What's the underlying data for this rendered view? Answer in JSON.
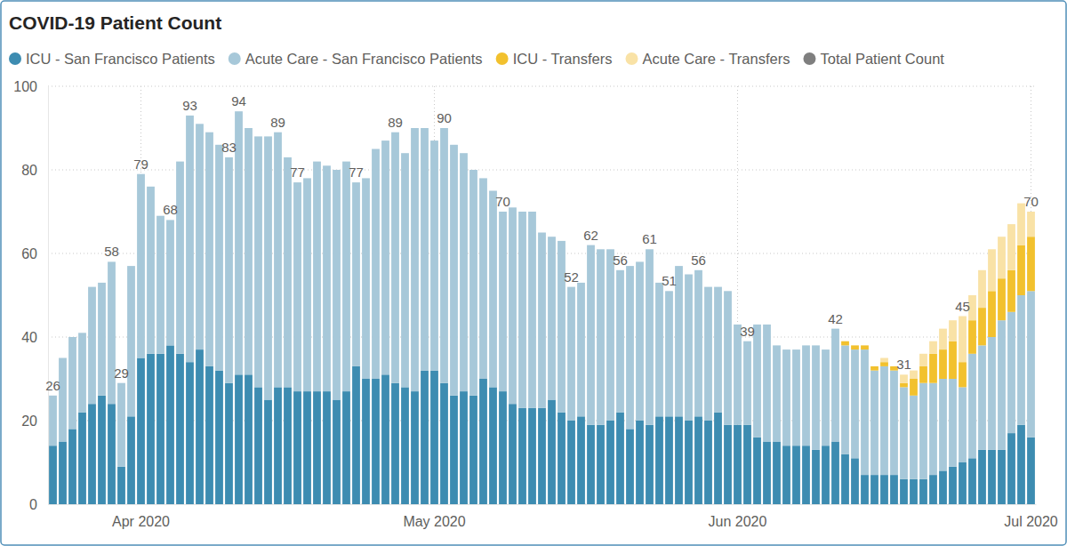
{
  "chart_data": {
    "type": "bar",
    "title": "COVID-19 Patient Count",
    "stacked": true,
    "grid": true,
    "legend": "top",
    "ylim": [
      0,
      100
    ],
    "yticks": [
      0,
      20,
      40,
      60,
      80,
      100
    ],
    "categories": [
      null,
      null,
      null,
      null,
      null,
      null,
      null,
      null,
      null,
      "Apr 2020",
      null,
      null,
      null,
      null,
      null,
      null,
      null,
      null,
      null,
      null,
      null,
      null,
      null,
      null,
      null,
      null,
      null,
      null,
      null,
      null,
      null,
      null,
      null,
      null,
      null,
      null,
      null,
      null,
      null,
      "May 2020",
      null,
      null,
      null,
      null,
      null,
      null,
      null,
      null,
      null,
      null,
      null,
      null,
      null,
      null,
      null,
      null,
      null,
      null,
      null,
      null,
      null,
      null,
      null,
      null,
      null,
      null,
      null,
      null,
      null,
      null,
      "Jun 2020",
      null,
      null,
      null,
      null,
      null,
      null,
      null,
      null,
      null,
      null,
      null,
      null,
      null,
      null,
      null,
      null,
      null,
      null,
      null,
      null,
      null,
      null,
      null,
      null,
      null,
      null,
      null,
      null,
      null,
      "Jul 2020"
    ],
    "series": [
      {
        "name": "ICU - San Francisco Patients",
        "color": "#3d8cb1",
        "type": "bar",
        "values": [
          14,
          15,
          18,
          22,
          24,
          26,
          24,
          9,
          21,
          35,
          36,
          36,
          38,
          36,
          34,
          37,
          33,
          32,
          29,
          31,
          31,
          28,
          25,
          28,
          28,
          27,
          27,
          27,
          27,
          25,
          27,
          33,
          30,
          30,
          31,
          29,
          28,
          27,
          32,
          32,
          29,
          26,
          27,
          26,
          30,
          28,
          27,
          24,
          23,
          23,
          23,
          25,
          22,
          20,
          21,
          19,
          19,
          20,
          22,
          18,
          20,
          19,
          21,
          21,
          21,
          20,
          21,
          20,
          22,
          19,
          19,
          19,
          16,
          15,
          15,
          14,
          14,
          14,
          13,
          14,
          15,
          12,
          11,
          7,
          7,
          7,
          7,
          6,
          6,
          6,
          7,
          8,
          9,
          10,
          11,
          13,
          13,
          13,
          17,
          19,
          16
        ]
      },
      {
        "name": "Acute Care - San Francisco Patients",
        "color": "#a7c8d9",
        "type": "bar",
        "values": [
          12,
          20,
          22,
          19,
          28,
          27,
          34,
          20,
          36,
          44,
          40,
          33,
          30,
          46,
          59,
          54,
          56,
          54,
          54,
          63,
          59,
          60,
          63,
          61,
          55,
          50,
          51,
          55,
          54,
          55,
          55,
          44,
          48,
          55,
          56,
          60,
          56,
          63,
          58,
          55,
          61,
          60,
          57,
          54,
          48,
          47,
          43,
          47,
          47,
          47,
          42,
          39,
          41,
          32,
          32,
          43,
          42,
          41,
          34,
          39,
          38,
          42,
          32,
          30,
          36,
          35,
          35,
          32,
          30,
          32,
          24,
          20,
          27,
          28,
          23,
          23,
          23,
          24,
          25,
          23,
          27,
          26,
          26,
          30,
          25,
          26,
          25,
          22,
          20,
          23,
          22,
          22,
          21,
          18,
          25,
          25,
          27,
          31,
          29,
          31,
          35
        ]
      },
      {
        "name": "ICU - Transfers",
        "color": "#f2c12e",
        "type": "bar",
        "values": [
          0,
          0,
          0,
          0,
          0,
          0,
          0,
          0,
          0,
          0,
          0,
          0,
          0,
          0,
          0,
          0,
          0,
          0,
          0,
          0,
          0,
          0,
          0,
          0,
          0,
          0,
          0,
          0,
          0,
          0,
          0,
          0,
          0,
          0,
          0,
          0,
          0,
          0,
          0,
          0,
          0,
          0,
          0,
          0,
          0,
          0,
          0,
          0,
          0,
          0,
          0,
          0,
          0,
          0,
          0,
          0,
          0,
          0,
          0,
          0,
          0,
          0,
          0,
          0,
          0,
          0,
          0,
          0,
          0,
          0,
          0,
          0,
          0,
          0,
          0,
          0,
          0,
          0,
          0,
          0,
          0,
          1,
          1,
          1,
          1,
          1,
          1,
          1,
          4,
          4,
          7,
          7,
          9,
          6,
          8,
          9,
          11,
          10,
          10,
          12,
          13
        ]
      },
      {
        "name": "Acute Care - Transfers",
        "color": "#f9e2a6",
        "type": "bar",
        "values": [
          0,
          0,
          0,
          0,
          0,
          0,
          0,
          0,
          0,
          0,
          0,
          0,
          0,
          0,
          0,
          0,
          0,
          0,
          0,
          0,
          0,
          0,
          0,
          0,
          0,
          0,
          0,
          0,
          0,
          0,
          0,
          0,
          0,
          0,
          0,
          0,
          0,
          0,
          0,
          0,
          0,
          0,
          0,
          0,
          0,
          0,
          0,
          0,
          0,
          0,
          0,
          0,
          0,
          0,
          0,
          0,
          0,
          0,
          0,
          0,
          0,
          0,
          0,
          0,
          0,
          0,
          0,
          0,
          0,
          0,
          0,
          0,
          0,
          0,
          0,
          0,
          0,
          0,
          0,
          0,
          0,
          0,
          0,
          0,
          0,
          1,
          0,
          2,
          2,
          3,
          3,
          5,
          5,
          11,
          6,
          9,
          10,
          10,
          11,
          10,
          6
        ]
      },
      {
        "name": "Total Patient Count",
        "color": "#7f7f7f",
        "type": "label",
        "data_labels": true,
        "values": [
          26,
          null,
          null,
          null,
          null,
          null,
          58,
          29,
          null,
          79,
          null,
          null,
          68,
          null,
          93,
          null,
          null,
          null,
          83,
          94,
          null,
          null,
          null,
          89,
          null,
          77,
          null,
          null,
          null,
          null,
          null,
          77,
          null,
          null,
          null,
          89,
          null,
          null,
          null,
          null,
          90,
          null,
          null,
          null,
          null,
          null,
          70,
          null,
          null,
          null,
          null,
          null,
          null,
          52,
          null,
          62,
          null,
          null,
          56,
          null,
          null,
          61,
          null,
          51,
          null,
          null,
          56,
          null,
          null,
          null,
          null,
          39,
          null,
          null,
          null,
          null,
          null,
          null,
          null,
          null,
          42,
          null,
          null,
          null,
          null,
          null,
          null,
          31,
          null,
          null,
          null,
          null,
          null,
          45,
          null,
          null,
          null,
          null,
          null,
          null,
          70
        ]
      }
    ]
  }
}
